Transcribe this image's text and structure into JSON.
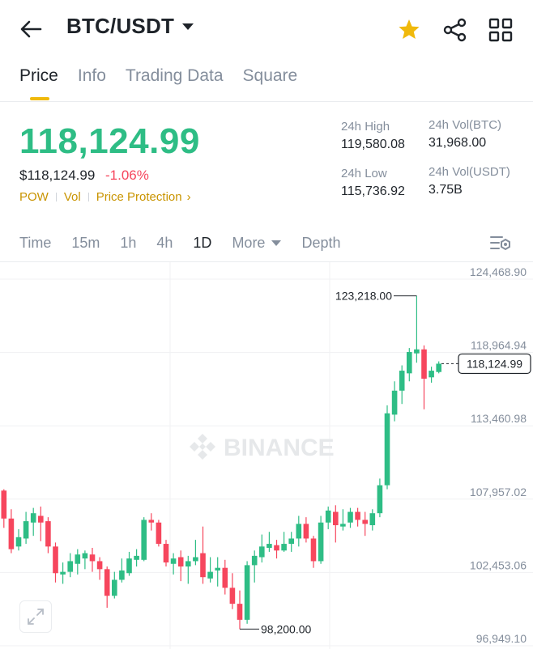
{
  "header": {
    "pair": "BTC/USDT",
    "icons": [
      "back-arrow-icon",
      "chevron-down-icon",
      "star-icon",
      "share-icon",
      "grid-icon"
    ],
    "star_color": "#f0b90b"
  },
  "tabs": [
    "Price",
    "Info",
    "Trading Data",
    "Square"
  ],
  "ticker": {
    "last_price": "118,124.99",
    "usd_price": "$118,124.99",
    "change": "-1.06%",
    "tags": [
      "POW",
      "Vol",
      "Price Protection"
    ],
    "high_label": "24h High",
    "high": "119,580.08",
    "low_label": "24h Low",
    "low": "115,736.92",
    "vol_btc_label": "24h Vol(BTC)",
    "vol_btc": "31,968.00",
    "vol_usdt_label": "24h Vol(USDT)",
    "vol_usdt": "3.75B"
  },
  "intervals": [
    "Time",
    "15m",
    "1h",
    "4h",
    "1D",
    "More",
    "Depth"
  ],
  "active_interval": "1D",
  "colors": {
    "up": "#2ebd85",
    "down": "#f6465d",
    "accent": "#f0b90b",
    "tag": "#c99400"
  },
  "chart_data": {
    "type": "candlestick",
    "watermark": "BINANCE",
    "y_ticks": [
      "124,468.90",
      "118,964.94",
      "113,460.98",
      "107,957.02",
      "102,453.06",
      "96,949.10"
    ],
    "ylim": [
      96949.1,
      124468.9
    ],
    "max_label": "123,218.00",
    "min_label": "98,200.00",
    "last_label": "118,124.99",
    "last_value": 118124.99,
    "candles": [
      [
        108600,
        106500,
        108700,
        105800
      ],
      [
        106500,
        104200,
        107200,
        103900
      ],
      [
        104400,
        105100,
        105700,
        104100
      ],
      [
        105000,
        106300,
        107000,
        104600
      ],
      [
        106200,
        106900,
        107300,
        105200
      ],
      [
        106700,
        106200,
        107400,
        104800
      ],
      [
        106300,
        104400,
        106600,
        103900
      ],
      [
        104400,
        102400,
        104700,
        101700
      ],
      [
        102300,
        102500,
        103200,
        101600
      ],
      [
        102500,
        103300,
        103900,
        102100
      ],
      [
        103100,
        103800,
        104200,
        102300
      ],
      [
        103500,
        103900,
        104100,
        102700
      ],
      [
        103800,
        103300,
        104300,
        102500
      ],
      [
        103300,
        102700,
        103600,
        101900
      ],
      [
        102700,
        100700,
        102900,
        99800
      ],
      [
        100700,
        101900,
        102500,
        100500
      ],
      [
        101900,
        102600,
        103500,
        101700
      ],
      [
        102400,
        103500,
        104000,
        102200
      ],
      [
        103400,
        103700,
        104200,
        102900
      ],
      [
        103400,
        106400,
        106600,
        103300
      ],
      [
        106400,
        106200,
        106900,
        105600
      ],
      [
        106200,
        104600,
        106400,
        104400
      ],
      [
        104600,
        103200,
        104900,
        102900
      ],
      [
        103100,
        103500,
        103900,
        102300
      ],
      [
        103600,
        102900,
        104100,
        101800
      ],
      [
        102900,
        103300,
        103700,
        101600
      ],
      [
        103300,
        103600,
        104900,
        103000
      ],
      [
        103900,
        102100,
        105900,
        101600
      ],
      [
        102000,
        102500,
        103600,
        101700
      ],
      [
        102600,
        102800,
        103600,
        101400
      ],
      [
        102800,
        101300,
        103400,
        100800
      ],
      [
        101300,
        100100,
        102400,
        99700
      ],
      [
        100100,
        98900,
        101100,
        98200
      ],
      [
        98900,
        103000,
        103300,
        98600
      ],
      [
        103000,
        103700,
        104100,
        101700
      ],
      [
        103600,
        104400,
        105300,
        103200
      ],
      [
        104300,
        104600,
        105500,
        104000
      ],
      [
        104500,
        104100,
        104900,
        103500
      ],
      [
        104100,
        104600,
        105500,
        104000
      ],
      [
        104600,
        105000,
        105500,
        104000
      ],
      [
        105000,
        106100,
        106700,
        104400
      ],
      [
        106100,
        105000,
        106600,
        104700
      ],
      [
        105000,
        103300,
        105200,
        102800
      ],
      [
        103300,
        106200,
        106700,
        103100
      ],
      [
        106200,
        107100,
        107400,
        105700
      ],
      [
        107000,
        106000,
        107500,
        104700
      ],
      [
        105900,
        106100,
        107200,
        105600
      ],
      [
        106200,
        107000,
        107300,
        105800
      ],
      [
        107000,
        106400,
        107300,
        105900
      ],
      [
        106400,
        106100,
        107000,
        105200
      ],
      [
        106000,
        106900,
        107200,
        105600
      ],
      [
        106900,
        109000,
        109500,
        106600
      ],
      [
        109000,
        114400,
        115000,
        108700
      ],
      [
        114300,
        116100,
        116800,
        113800
      ],
      [
        116100,
        117600,
        118000,
        115100
      ],
      [
        117400,
        119000,
        119300,
        116800
      ],
      [
        118900,
        119200,
        123218,
        118200
      ],
      [
        119200,
        117000,
        119500,
        114700
      ],
      [
        117100,
        117600,
        117900,
        116700
      ],
      [
        117500,
        118125,
        118300,
        117400
      ]
    ]
  }
}
